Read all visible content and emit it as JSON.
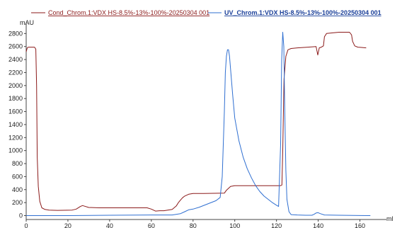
{
  "chart_data": {
    "type": "line",
    "title": "",
    "xlabel": "",
    "ylabel": "",
    "x_unit": "ml",
    "y_unit": "mAU",
    "xlim": [
      0,
      170
    ],
    "ylim": [
      -60,
      2880
    ],
    "x_ticks": [
      0,
      20,
      40,
      60,
      80,
      100,
      120,
      140,
      160
    ],
    "y_ticks": [
      0,
      200,
      400,
      600,
      800,
      1000,
      1200,
      1400,
      1600,
      1800,
      2000,
      2200,
      2400,
      2600,
      2800
    ],
    "grid": false,
    "legend_position": "top",
    "series": [
      {
        "name": "Cond_Chrom.1:VDX HS-8.5%-13%-100%-20250304 001",
        "color": "#8b1a1a",
        "legend_style": "normal",
        "x": [
          0,
          0.5,
          1,
          4,
          4.6,
          5,
          5.3,
          5.8,
          6.5,
          7.5,
          9,
          11,
          15,
          22,
          24,
          26,
          27,
          28,
          30,
          35,
          45,
          58,
          60,
          62,
          64,
          66,
          70,
          72,
          73,
          74,
          75,
          76,
          78,
          80,
          85,
          95,
          96,
          98,
          100,
          110,
          120,
          122,
          122.6,
          123,
          123.6,
          124.5,
          125.5,
          127,
          130,
          135,
          139,
          139.8,
          140.5,
          141.5,
          142.5,
          143,
          144,
          147,
          150,
          155,
          156,
          156.5,
          157.5,
          159,
          163
        ],
        "y": [
          2520,
          2580,
          2590,
          2590,
          2560,
          2000,
          900,
          450,
          220,
          120,
          95,
          85,
          80,
          85,
          100,
          140,
          155,
          145,
          125,
          120,
          120,
          120,
          100,
          70,
          75,
          75,
          95,
          150,
          200,
          240,
          275,
          300,
          330,
          340,
          340,
          345,
          390,
          450,
          460,
          460,
          460,
          460,
          470,
          1000,
          2100,
          2450,
          2550,
          2570,
          2580,
          2590,
          2600,
          2470,
          2580,
          2590,
          2610,
          2750,
          2800,
          2810,
          2820,
          2820,
          2780,
          2680,
          2610,
          2590,
          2580
        ]
      },
      {
        "name": "UV_Chrom.1:VDX HS-8.5%-13%-100%-20250304 001",
        "color": "#2f6fd1",
        "legend_style": "bold-underline",
        "x": [
          0,
          20,
          40,
          60,
          70,
          74,
          76,
          78,
          80,
          83,
          87,
          91,
          93,
          94,
          95,
          95.5,
          96,
          96.5,
          97,
          97.5,
          98,
          99,
          100,
          102,
          104,
          106,
          108,
          110,
          112,
          114,
          116,
          118,
          120,
          121,
          122,
          122.5,
          123,
          123.5,
          124,
          124.5,
          125,
          126,
          127,
          130,
          134,
          137,
          138,
          139,
          140,
          141,
          143,
          150,
          165
        ],
        "y": [
          0,
          0,
          5,
          10,
          10,
          30,
          60,
          90,
          100,
          130,
          180,
          230,
          280,
          600,
          1600,
          2200,
          2450,
          2550,
          2550,
          2450,
          2250,
          1850,
          1500,
          1150,
          900,
          720,
          580,
          460,
          370,
          300,
          250,
          200,
          160,
          140,
          1100,
          2400,
          2820,
          2600,
          1600,
          700,
          250,
          60,
          15,
          10,
          5,
          5,
          20,
          40,
          45,
          30,
          10,
          5,
          0
        ]
      }
    ]
  }
}
